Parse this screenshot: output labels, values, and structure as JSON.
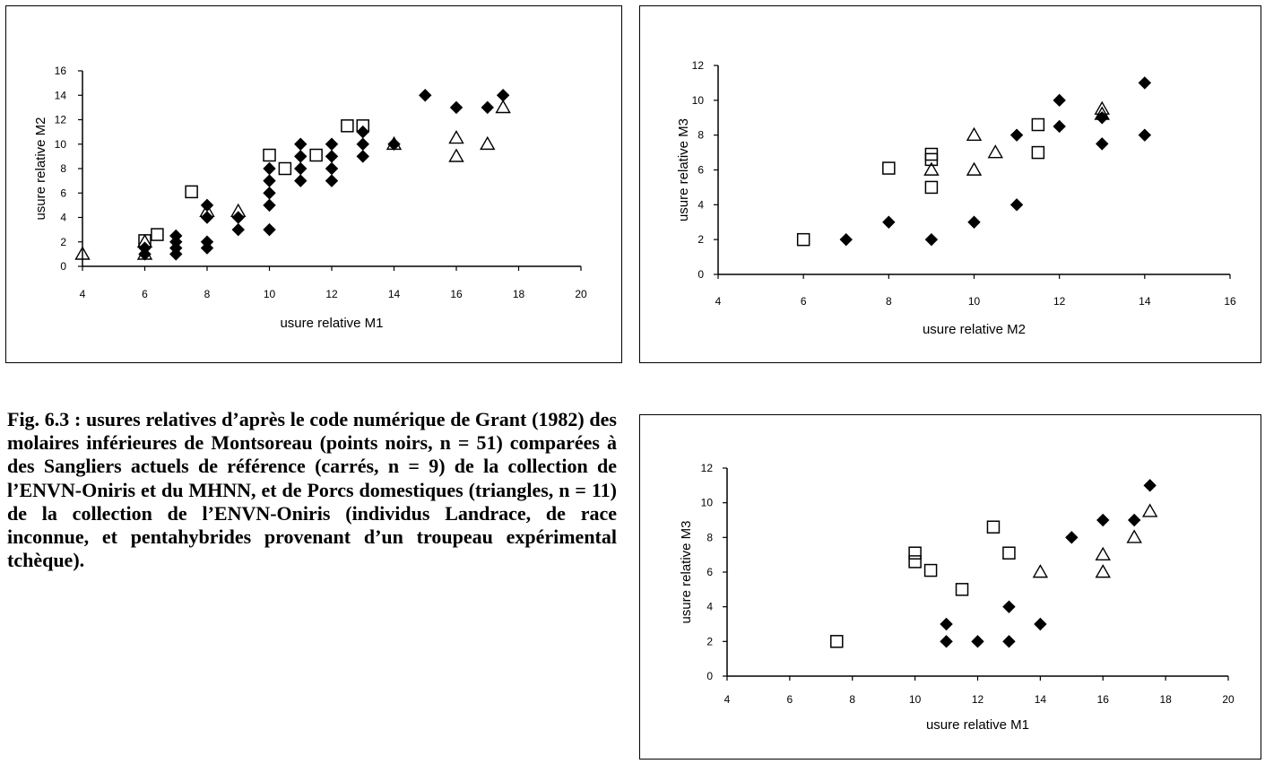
{
  "caption": "Fig. 6.3 : usures relatives d’après le code numérique de Grant (1982) des molaires inférieures de Montsoreau (points noirs, n = 51) comparées à des Sangliers actuels de référence (carrés, n = 9) de la collection de l’ENVN-Oniris et du MHNN, et de Porcs domestiques (triangles, n = 11) de la collection de l’ENVN-Oniris (individus Landrace, de race inconnue, et pentahybrides provenant d’un troupeau expérimental tchèque).",
  "chart_data": [
    {
      "type": "scatter",
      "xlabel": "usure relative M1",
      "ylabel": "usure relative M2",
      "xlim": [
        4,
        20
      ],
      "ylim": [
        0,
        16
      ],
      "xticks": [
        4,
        6,
        8,
        10,
        12,
        14,
        16,
        18,
        20
      ],
      "yticks": [
        0,
        2,
        4,
        6,
        8,
        10,
        12,
        14,
        16
      ],
      "grid": false,
      "series": [
        {
          "marker": "filled-diamond",
          "points": [
            [
              6,
              1
            ],
            [
              6,
              1.5
            ],
            [
              7,
              1
            ],
            [
              7,
              1.5
            ],
            [
              7,
              2
            ],
            [
              7,
              2.5
            ],
            [
              8,
              1.5
            ],
            [
              8,
              2
            ],
            [
              8,
              4
            ],
            [
              8,
              5
            ],
            [
              9,
              3
            ],
            [
              9,
              4
            ],
            [
              10,
              3
            ],
            [
              10,
              5
            ],
            [
              10,
              6
            ],
            [
              10,
              7
            ],
            [
              10,
              8
            ],
            [
              11,
              7
            ],
            [
              11,
              8
            ],
            [
              11,
              9
            ],
            [
              11,
              10
            ],
            [
              12,
              7
            ],
            [
              12,
              8
            ],
            [
              12,
              9
            ],
            [
              12,
              10
            ],
            [
              13,
              9
            ],
            [
              13,
              10
            ],
            [
              13,
              11
            ],
            [
              14,
              10
            ],
            [
              15,
              14
            ],
            [
              16,
              13
            ],
            [
              17,
              13
            ],
            [
              17.5,
              14
            ]
          ]
        },
        {
          "marker": "open-square",
          "points": [
            [
              6,
              2.1
            ],
            [
              6.4,
              2.6
            ],
            [
              7.5,
              6.1
            ],
            [
              10,
              9.1
            ],
            [
              10.5,
              8
            ],
            [
              11.5,
              9.1
            ],
            [
              12.5,
              11.5
            ],
            [
              13,
              11.5
            ]
          ]
        },
        {
          "marker": "open-triangle",
          "points": [
            [
              4,
              1
            ],
            [
              6,
              1
            ],
            [
              6,
              2
            ],
            [
              8,
              4.5
            ],
            [
              9,
              4.5
            ],
            [
              14,
              10
            ],
            [
              16,
              9
            ],
            [
              16,
              10.5
            ],
            [
              17,
              10
            ],
            [
              17.5,
              13
            ]
          ]
        }
      ]
    },
    {
      "type": "scatter",
      "xlabel": "usure relative M2",
      "ylabel": "usure relative M3",
      "xlim": [
        4,
        16
      ],
      "ylim": [
        0,
        12
      ],
      "xticks": [
        4,
        6,
        8,
        10,
        12,
        14,
        16
      ],
      "yticks": [
        0,
        2,
        4,
        6,
        8,
        10,
        12
      ],
      "grid": false,
      "series": [
        {
          "marker": "filled-diamond",
          "points": [
            [
              7,
              2
            ],
            [
              8,
              3
            ],
            [
              9,
              2
            ],
            [
              10,
              3
            ],
            [
              11,
              4
            ],
            [
              11,
              8
            ],
            [
              12,
              8.5
            ],
            [
              12,
              10
            ],
            [
              13,
              7.5
            ],
            [
              13,
              9
            ],
            [
              14,
              8
            ],
            [
              14,
              11
            ]
          ]
        },
        {
          "marker": "open-square",
          "points": [
            [
              6,
              2
            ],
            [
              8,
              6.1
            ],
            [
              9,
              5
            ],
            [
              9,
              6.6
            ],
            [
              9,
              6.9
            ],
            [
              11.5,
              7
            ],
            [
              11.5,
              8.6
            ]
          ]
        },
        {
          "marker": "open-triangle",
          "points": [
            [
              9,
              6
            ],
            [
              10,
              6
            ],
            [
              10,
              8
            ],
            [
              10.5,
              7
            ],
            [
              13,
              9.2
            ],
            [
              13,
              9.5
            ]
          ]
        }
      ]
    },
    {
      "type": "scatter",
      "xlabel": "usure relative M1",
      "ylabel": "usure relative M3",
      "xlim": [
        4,
        20
      ],
      "ylim": [
        0,
        12
      ],
      "xticks": [
        4,
        6,
        8,
        10,
        12,
        14,
        16,
        18,
        20
      ],
      "yticks": [
        0,
        2,
        4,
        6,
        8,
        10,
        12
      ],
      "grid": false,
      "series": [
        {
          "marker": "filled-diamond",
          "points": [
            [
              11,
              2
            ],
            [
              11,
              3
            ],
            [
              12,
              2
            ],
            [
              13,
              2
            ],
            [
              13,
              4
            ],
            [
              14,
              3
            ],
            [
              15,
              8
            ],
            [
              16,
              9
            ],
            [
              17,
              9
            ],
            [
              17.5,
              11
            ]
          ]
        },
        {
          "marker": "open-square",
          "points": [
            [
              7.5,
              2
            ],
            [
              10,
              6.6
            ],
            [
              10,
              7.1
            ],
            [
              10.5,
              6.1
            ],
            [
              11.5,
              5
            ],
            [
              12.5,
              8.6
            ],
            [
              13,
              7.1
            ]
          ]
        },
        {
          "marker": "open-triangle",
          "points": [
            [
              14,
              6
            ],
            [
              16,
              6
            ],
            [
              16,
              7
            ],
            [
              17,
              8
            ],
            [
              17.5,
              9.5
            ]
          ]
        }
      ]
    }
  ]
}
